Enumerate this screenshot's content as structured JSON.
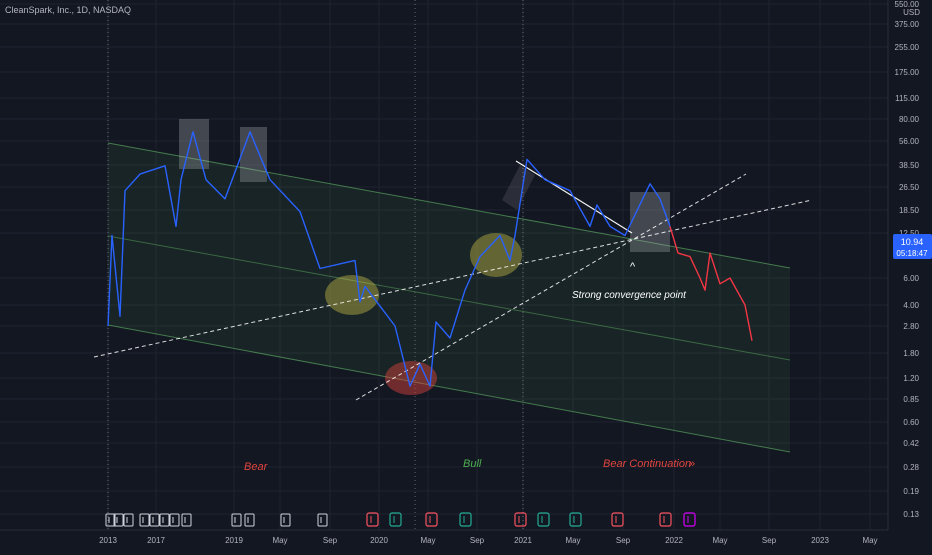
{
  "header": {
    "symbol_line": "CleanSpark, Inc., 1D, NASDAQ"
  },
  "price_axis": {
    "currency": "USD",
    "labels": [
      "550.00",
      "375.00",
      "255.00",
      "175.00",
      "115.00",
      "80.00",
      "56.00",
      "38.50",
      "26.50",
      "18.50",
      "12.50",
      "6.00",
      "4.00",
      "2.80",
      "1.80",
      "1.20",
      "0.85",
      "0.60",
      "0.42",
      "0.28",
      "0.19",
      "0.13"
    ],
    "last_price": "10.94",
    "countdown": "05:18:47"
  },
  "time_axis": {
    "labels": [
      "2013",
      "2017",
      "2019",
      "May",
      "Sep",
      "2020",
      "May",
      "Sep",
      "2021",
      "May",
      "Sep",
      "2022",
      "May",
      "Sep",
      "2023",
      "May"
    ]
  },
  "annotations": {
    "bear": "Bear",
    "bull": "Bull",
    "bear_continuation": "Bear Continuation",
    "arrows": "»",
    "convergence_caret": "^",
    "convergence": "Strong convergence point"
  },
  "colors": {
    "background": "#131722",
    "price_line_blue": "#2962ff",
    "price_line_red": "#f23645",
    "channel_fill": "#4caf50",
    "channel_line": "#66bb6a",
    "bear_text": "#e0443e",
    "bull_text": "#4caf50",
    "last_price_badge": "#2962ff"
  },
  "chart_data": {
    "type": "line",
    "symbol": "CleanSpark, Inc.",
    "interval": "1D",
    "exchange": "NASDAQ",
    "y_scale": "log",
    "ylim": [
      0.13,
      550
    ],
    "series": [
      {
        "color": "blue",
        "points": [
          [
            "2013",
            2.8
          ],
          [
            "2013",
            12.0
          ],
          [
            "2013",
            3.3
          ],
          [
            "2013",
            25.0
          ],
          [
            "2017",
            33.0
          ],
          [
            "2017",
            38.0
          ],
          [
            "2017",
            14.0
          ],
          [
            "2017",
            30.0
          ],
          [
            "2017",
            65.0
          ],
          [
            "2017",
            30.0
          ],
          [
            "2019",
            22.0
          ],
          [
            "2019",
            65.0
          ],
          [
            "2019",
            30.0
          ],
          [
            "May",
            18.0
          ],
          [
            "May",
            7.0
          ],
          [
            "Sep",
            8.0
          ],
          [
            "Sep",
            4.2
          ],
          [
            "Sep",
            5.3
          ],
          [
            "Sep",
            2.8
          ],
          [
            "2020",
            1.05
          ],
          [
            "2020",
            1.5
          ],
          [
            "May",
            1.05
          ],
          [
            "May",
            3.0
          ],
          [
            "May",
            2.3
          ],
          [
            "Sep",
            5.0
          ],
          [
            "Sep",
            8.5
          ],
          [
            "Sep",
            12.0
          ],
          [
            "Sep",
            8.0
          ],
          [
            "2021",
            12.0
          ],
          [
            "2021",
            42.0
          ],
          [
            "2021",
            30.0
          ],
          [
            "May",
            25.0
          ],
          [
            "May",
            14.0
          ],
          [
            "May",
            20.0
          ],
          [
            "Sep",
            14.0
          ],
          [
            "Sep",
            12.0
          ],
          [
            "Sep",
            28.0
          ],
          [
            "Sep",
            22.0
          ],
          [
            "2022",
            14.0
          ]
        ]
      },
      {
        "color": "red",
        "points": [
          [
            "2022",
            14.0
          ],
          [
            "2022",
            9.0
          ],
          [
            "2022",
            8.5
          ],
          [
            "2022",
            6.0
          ],
          [
            "May",
            5.0
          ],
          [
            "May",
            9.0
          ],
          [
            "May",
            5.5
          ],
          [
            "May",
            6.0
          ],
          [
            "Sep",
            4.0
          ],
          [
            "Sep",
            2.2
          ]
        ]
      }
    ],
    "annotations": [
      "Bear",
      "Bull",
      "Bear Continuation",
      "Strong convergence point"
    ]
  }
}
